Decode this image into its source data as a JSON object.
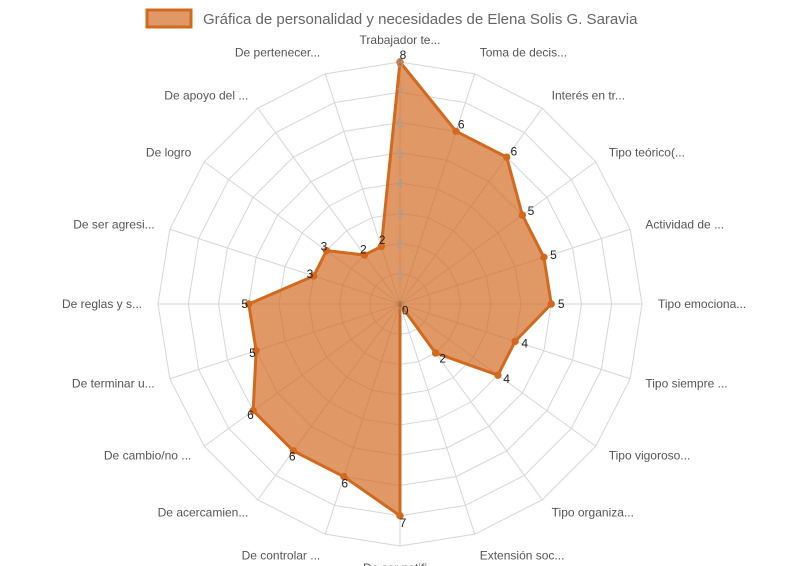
{
  "chart_data": {
    "type": "radar",
    "title": "",
    "legend": {
      "position": "top",
      "entries": [
        "Gráfica de personalidad y necesidades de Elena Solis G. Saravia"
      ]
    },
    "series": [
      {
        "name": "Gráfica de personalidad y necesidades de Elena Solis G. Saravia",
        "color": "#D2691E",
        "fill": "rgba(210,105,30,0.68)",
        "values": [
          8,
          6,
          6,
          5,
          5,
          5,
          4,
          4,
          2,
          0,
          7,
          6,
          6,
          6,
          5,
          5,
          3,
          3,
          2,
          2
        ]
      }
    ],
    "categories": [
      "Trabajador te...",
      "Toma de decis...",
      "Interés en tr...",
      "Tipo teórico(...",
      "Actividad de ...",
      "Tipo emociona...",
      "Tipo siempre ...",
      "Tipo vigoroso...",
      "Tipo organiza...",
      "Extensión soc...",
      "De ser notifi...",
      "De controlar ...",
      "De acercamien...",
      "De cambio/no ...",
      "De terminar u...",
      "De reglas y s...",
      "De ser agresi...",
      "De logro",
      "De apoyo del ...",
      "De pertenecer..."
    ],
    "ticks": [
      "0",
      "1",
      "2",
      "3",
      "4",
      "5",
      "6",
      "7",
      "8"
    ],
    "rlim": [
      0,
      8
    ],
    "grid": true
  }
}
